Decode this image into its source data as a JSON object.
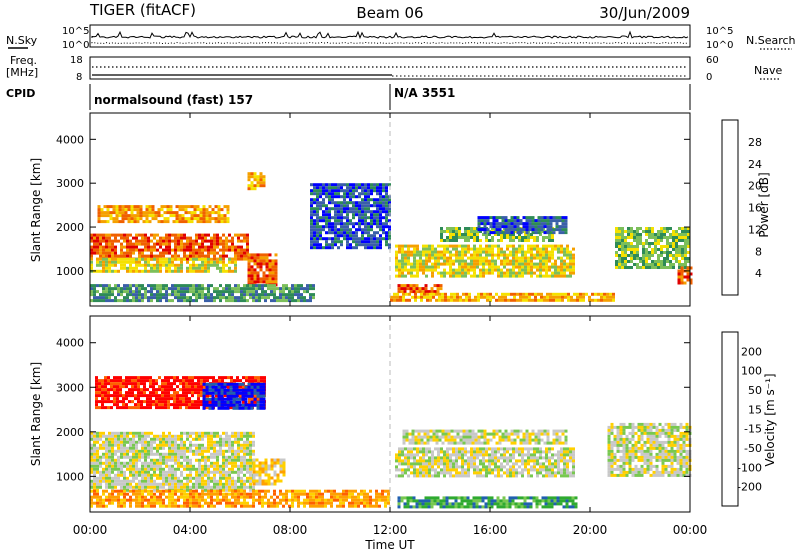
{
  "header": {
    "station": "TIGER (fitACF)",
    "beam": "Beam 06",
    "date": "30/Jun/2009"
  },
  "left_labels": {
    "nsky": "N.Sky",
    "freq": "Freq.",
    "freq_unit": "[MHz]",
    "cpid": "CPID"
  },
  "right_labels": {
    "nsearch": "N.Search",
    "nave": "Nave"
  },
  "cpid_segments": [
    {
      "label": "normalsound (fast) 157"
    },
    {
      "label": "N/A 3551"
    }
  ],
  "colors": {
    "power": [
      "#0000ff",
      "#3a5fa8",
      "#2e8b57",
      "#7cbf5a",
      "#f5e100",
      "#f5a000",
      "#f06000",
      "#e00000"
    ],
    "velocity": [
      "#ff0000",
      "#ff6000",
      "#ffa000",
      "#ffd000",
      "#c8c8c8",
      "#78c850",
      "#2faa30",
      "#2060b0",
      "#0000ff"
    ]
  },
  "chart_data": [
    {
      "type": "line",
      "name": "noise-panel",
      "x_range_hours": [
        0,
        24
      ],
      "left_axis": {
        "ticks": [
          "10^5",
          "10^0"
        ],
        "scale": "log"
      },
      "right_axis": {
        "ticks": [
          "10^5",
          "10^0"
        ],
        "scale": "log"
      }
    },
    {
      "type": "scatter",
      "name": "freq-nave-panel",
      "x_range_hours": [
        0,
        24
      ],
      "left_axis": {
        "ticks": [
          "18",
          "8"
        ],
        "ylim": [
          8,
          18
        ]
      },
      "right_axis": {
        "ticks": [
          "60",
          "0"
        ],
        "ylim": [
          0,
          60
        ]
      }
    },
    {
      "type": "heatmap",
      "name": "power",
      "ylabel": "Slant Range [km]",
      "ylim_km": [
        200,
        4600
      ],
      "yticks": [
        "1000",
        "2000",
        "3000",
        "4000"
      ],
      "colorbar_label": "Power [dB]",
      "colorbar_ticks": [
        "4",
        "8",
        "12",
        "16",
        "20",
        "24",
        "28"
      ],
      "x_range_hours": [
        0,
        24
      ],
      "regions": [
        {
          "t0": 0.0,
          "t1": 6.3,
          "r0": 1300,
          "r1": 1850,
          "level": 6
        },
        {
          "t0": 0.0,
          "t1": 5.8,
          "r0": 1000,
          "r1": 1300,
          "level": 4
        },
        {
          "t0": 0.3,
          "t1": 5.5,
          "r0": 2150,
          "r1": 2500,
          "level": 5
        },
        {
          "t0": 6.3,
          "t1": 7.5,
          "r0": 700,
          "r1": 1400,
          "level": 6
        },
        {
          "t0": 6.3,
          "t1": 7.0,
          "r0": 2850,
          "r1": 3250,
          "level": 5
        },
        {
          "t0": 0.0,
          "t1": 9.0,
          "r0": 350,
          "r1": 700,
          "level": 2
        },
        {
          "t0": 8.8,
          "t1": 12.0,
          "r0": 1500,
          "r1": 3000,
          "level": 1
        },
        {
          "t0": 12.2,
          "t1": 19.3,
          "r0": 900,
          "r1": 1600,
          "level": 4
        },
        {
          "t0": 14.0,
          "t1": 18.5,
          "r0": 1700,
          "r1": 2000,
          "level": 3
        },
        {
          "t0": 15.5,
          "t1": 19.0,
          "r0": 1900,
          "r1": 2250,
          "level": 1
        },
        {
          "t0": 12.3,
          "t1": 14.0,
          "r0": 500,
          "r1": 700,
          "level": 6
        },
        {
          "t0": 12.0,
          "t1": 21.0,
          "r0": 300,
          "r1": 500,
          "level": 5
        },
        {
          "t0": 21.0,
          "t1": 24.0,
          "r0": 1100,
          "r1": 2000,
          "level": 3
        },
        {
          "t0": 23.5,
          "t1": 24.0,
          "r0": 700,
          "r1": 1100,
          "level": 6
        }
      ]
    },
    {
      "type": "heatmap",
      "name": "velocity",
      "ylabel": "Slant Range [km]",
      "ylim_km": [
        200,
        4600
      ],
      "yticks": [
        "1000",
        "2000",
        "3000",
        "4000"
      ],
      "colorbar_label": "Velocity [m s⁻¹]",
      "colorbar_ticks": [
        "200",
        "100",
        "50",
        "15",
        "-15",
        "-50",
        "-100",
        "-200"
      ],
      "x_range_hours": [
        0,
        24
      ],
      "xticks": [
        "00:00",
        "04:00",
        "08:00",
        "12:00",
        "16:00",
        "20:00",
        "00:00"
      ],
      "xlabel": "Time UT",
      "regions": [
        {
          "t0": 0.0,
          "t1": 6.5,
          "r0": 700,
          "r1": 2000,
          "level": 4
        },
        {
          "t0": 6.5,
          "t1": 7.8,
          "r0": 800,
          "r1": 1400,
          "level": 3
        },
        {
          "t0": 0.2,
          "t1": 7.0,
          "r0": 2550,
          "r1": 3250,
          "level": 0
        },
        {
          "t0": 4.5,
          "t1": 7.0,
          "r0": 2550,
          "r1": 3100,
          "level": 8
        },
        {
          "t0": 12.2,
          "t1": 19.3,
          "r0": 1000,
          "r1": 1650,
          "level": 4
        },
        {
          "t0": 12.5,
          "t1": 19.0,
          "r0": 1750,
          "r1": 2050,
          "level": 4
        },
        {
          "t0": 12.3,
          "t1": 19.5,
          "r0": 300,
          "r1": 550,
          "level": 6
        },
        {
          "t0": 20.7,
          "t1": 24.0,
          "r0": 1000,
          "r1": 2200,
          "level": 4
        },
        {
          "t0": 0.0,
          "t1": 12.0,
          "r0": 300,
          "r1": 700,
          "level": 2
        }
      ]
    }
  ]
}
